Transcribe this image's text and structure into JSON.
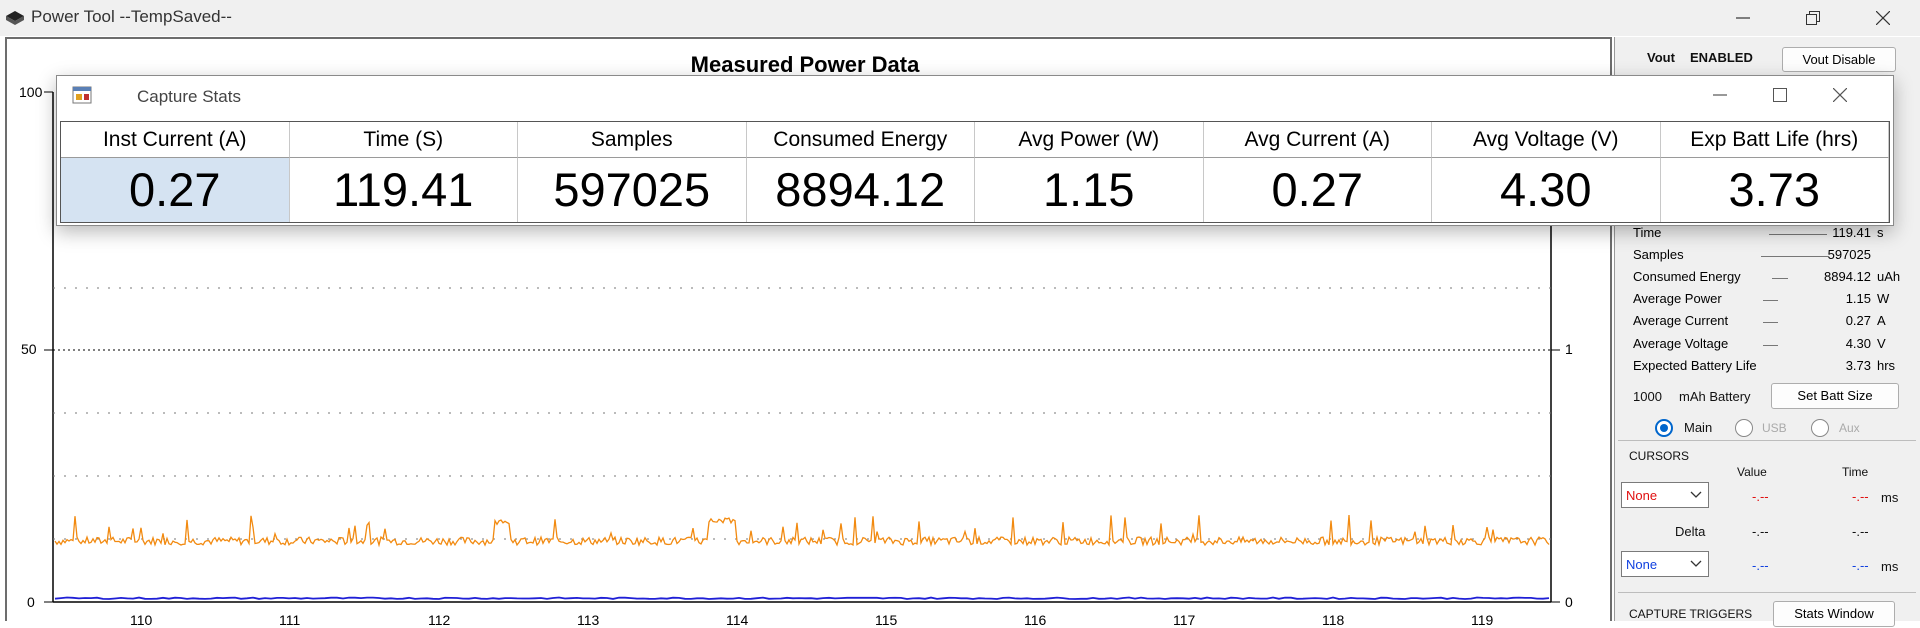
{
  "app": {
    "title": "Power Tool --TempSaved--"
  },
  "chart": {
    "title": "Measured Power Data",
    "left_ticks": [
      "100",
      "50",
      "0"
    ],
    "right_ticks": [
      "1",
      "0"
    ],
    "x_ticks": [
      "110",
      "111",
      "112",
      "113",
      "114",
      "115",
      "116",
      "117",
      "118",
      "119"
    ]
  },
  "side": {
    "vout_label": "Vout",
    "vout_status": "ENABLED",
    "vout_disable_label": "Vout Disable",
    "stats": [
      {
        "key": "Time",
        "value": "119.41",
        "unit": "s"
      },
      {
        "key": "Samples",
        "value": "597025",
        "unit": ""
      },
      {
        "key": "Consumed Energy",
        "value": "8894.12",
        "unit": "uAh"
      },
      {
        "key": "Average Power",
        "value": "1.15",
        "unit": "W"
      },
      {
        "key": "Average Current",
        "value": "0.27",
        "unit": "A"
      },
      {
        "key": "Average Voltage",
        "value": "4.30",
        "unit": "V"
      },
      {
        "key": "Expected Battery Life",
        "value": "3.73",
        "unit": "hrs"
      }
    ],
    "battery_size": "1000",
    "battery_unit": "mAh Battery",
    "set_batt_label": "Set Batt Size",
    "radio_main": "Main",
    "radio_usb": "USB",
    "radio_aux": "Aux",
    "cursors_label": "CURSORS",
    "value_header": "Value",
    "time_header": "Time",
    "cursor1_select": "None",
    "cursor1_value": "-.--",
    "cursor1_time": "-.--",
    "cursor1_unit": "ms",
    "delta_label": "Delta",
    "delta_value": "-.--",
    "delta_time": "-.--",
    "cursor2_select": "None",
    "cursor2_value": "-.--",
    "cursor2_time": "-.--",
    "cursor2_unit": "ms",
    "capture_triggers_label": "CAPTURE TRIGGERS",
    "stats_window_label": "Stats Window"
  },
  "popup": {
    "title": "Capture Stats",
    "headers": [
      "Inst Current (A)",
      "Time (S)",
      "Samples",
      "Consumed Energy",
      "Avg Power (W)",
      "Avg Current (A)",
      "Avg Voltage (V)",
      "Exp Batt Life (hrs)"
    ],
    "values": [
      "0.27",
      "119.41",
      "597025",
      "8894.12",
      "1.15",
      "0.27",
      "4.30",
      "3.73"
    ]
  },
  "colors": {
    "current_trace": "#f28a10",
    "voltage_trace": "#1f1fd6",
    "cursor1": "#e01010",
    "cursor2": "#1040e0"
  },
  "icons": [
    "app-icon",
    "minimize-icon",
    "restore-icon",
    "close-icon",
    "capture-stats-icon",
    "maximize-icon",
    "chevron-down-icon"
  ]
}
